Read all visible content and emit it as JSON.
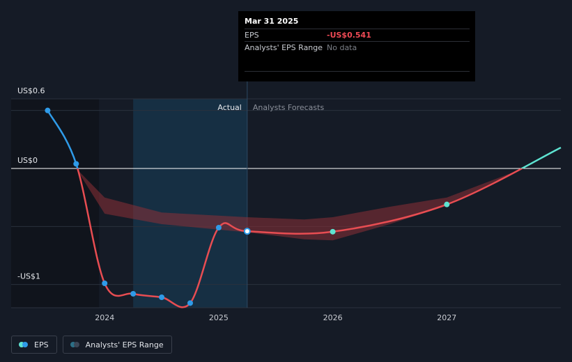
{
  "tooltip": {
    "date": "Mar 31 2025",
    "eps_label": "EPS",
    "eps_value": "-US$0.541",
    "range_label": "Analysts' EPS Range",
    "range_value": "No data"
  },
  "labels": {
    "actual": "Actual",
    "forecast": "Analysts Forecasts"
  },
  "legend": {
    "eps": "EPS",
    "range": "Analysts' EPS Range"
  },
  "colors": {
    "background": "#151b26",
    "eps_past_positive": "#2f9be8",
    "eps_negative": "#e84d52",
    "eps_future_positive": "#5ee3d1",
    "range_fill": "#8c2f36",
    "actual_shade": "#163249"
  },
  "chart_data": {
    "type": "line",
    "y_ticks": [
      {
        "value": 0.6,
        "label": "US$0.6"
      },
      {
        "value": 0,
        "label": "US$0"
      },
      {
        "value": -1,
        "label": "-US$1"
      }
    ],
    "x_ticks": [
      {
        "value": 2024.0,
        "label": "2024"
      },
      {
        "value": 2025.0,
        "label": "2025"
      },
      {
        "value": 2026.0,
        "label": "2026"
      },
      {
        "value": 2027.0,
        "label": "2027"
      }
    ],
    "xlim": [
      2023.18,
      2028.0
    ],
    "ylim": [
      -1.2,
      0.6
    ],
    "divider_x": 2025.25,
    "highlight_x": 2025.25,
    "series": [
      {
        "name": "EPS",
        "type": "actual",
        "points": [
          {
            "x": 2023.5,
            "y": 0.5
          },
          {
            "x": 2023.75,
            "y": 0.04
          },
          {
            "x": 2024.0,
            "y": -0.99
          },
          {
            "x": 2024.25,
            "y": -1.08
          },
          {
            "x": 2024.5,
            "y": -1.11
          },
          {
            "x": 2024.75,
            "y": -1.16
          },
          {
            "x": 2025.0,
            "y": -0.51
          },
          {
            "x": 2025.25,
            "y": -0.541
          }
        ]
      },
      {
        "name": "EPS",
        "type": "forecast",
        "points": [
          {
            "x": 2025.25,
            "y": -0.541
          },
          {
            "x": 2026.0,
            "y": -0.545
          },
          {
            "x": 2027.0,
            "y": -0.31
          },
          {
            "x": 2028.0,
            "y": 0.18
          }
        ]
      }
    ],
    "range_band": {
      "upper": [
        {
          "x": 2023.75,
          "y": 0.0
        },
        {
          "x": 2024.0,
          "y": -0.25
        },
        {
          "x": 2024.5,
          "y": -0.38
        },
        {
          "x": 2025.25,
          "y": -0.42
        },
        {
          "x": 2025.75,
          "y": -0.44
        },
        {
          "x": 2026.0,
          "y": -0.42
        },
        {
          "x": 2026.5,
          "y": -0.33
        },
        {
          "x": 2027.0,
          "y": -0.25
        },
        {
          "x": 2027.67,
          "y": 0.0
        }
      ],
      "lower": [
        {
          "x": 2027.67,
          "y": 0.0
        },
        {
          "x": 2027.0,
          "y": -0.32
        },
        {
          "x": 2026.5,
          "y": -0.48
        },
        {
          "x": 2026.0,
          "y": -0.62
        },
        {
          "x": 2025.75,
          "y": -0.61
        },
        {
          "x": 2025.25,
          "y": -0.55
        },
        {
          "x": 2024.5,
          "y": -0.48
        },
        {
          "x": 2024.0,
          "y": -0.39
        },
        {
          "x": 2023.75,
          "y": 0.0
        }
      ]
    }
  }
}
